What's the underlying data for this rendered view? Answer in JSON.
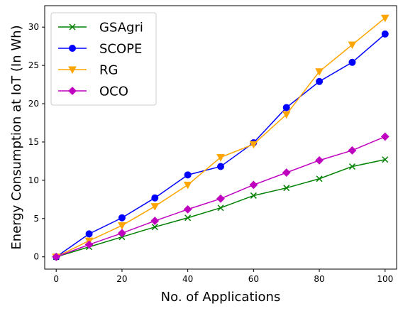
{
  "chart_data": {
    "type": "line",
    "xlabel": "No. of Applications",
    "ylabel": "Energy Consumption at IoT (In Wh)",
    "x": [
      0,
      10,
      20,
      30,
      40,
      50,
      60,
      70,
      80,
      90,
      100
    ],
    "xlim": [
      -3.5,
      103.5
    ],
    "ylim": [
      -1.6,
      32.8
    ],
    "xticks": [
      0,
      20,
      40,
      60,
      80,
      100
    ],
    "yticks": [
      0,
      5,
      10,
      15,
      20,
      25,
      30
    ],
    "grid": false,
    "legend_position": "top-left",
    "series": [
      {
        "name": "GSAgri",
        "color": "#008000",
        "marker": "x",
        "values": [
          0,
          1.3,
          2.6,
          3.9,
          5.1,
          6.4,
          8.0,
          9.0,
          10.2,
          11.8,
          12.7
        ]
      },
      {
        "name": "SCOPE",
        "color": "#0000ff",
        "marker": "circle",
        "values": [
          0,
          3.0,
          5.1,
          7.7,
          10.7,
          11.8,
          14.9,
          19.5,
          22.9,
          25.4,
          29.1
        ]
      },
      {
        "name": "RG",
        "color": "#ffa500",
        "marker": "triangle-down",
        "values": [
          0,
          2.1,
          4.1,
          6.6,
          9.4,
          13.0,
          14.7,
          18.6,
          24.2,
          27.7,
          31.2
        ]
      },
      {
        "name": "OCO",
        "color": "#bf00bf",
        "marker": "diamond",
        "values": [
          0,
          1.6,
          3.1,
          4.7,
          6.2,
          7.6,
          9.4,
          11.0,
          12.6,
          13.9,
          15.7
        ]
      }
    ]
  }
}
